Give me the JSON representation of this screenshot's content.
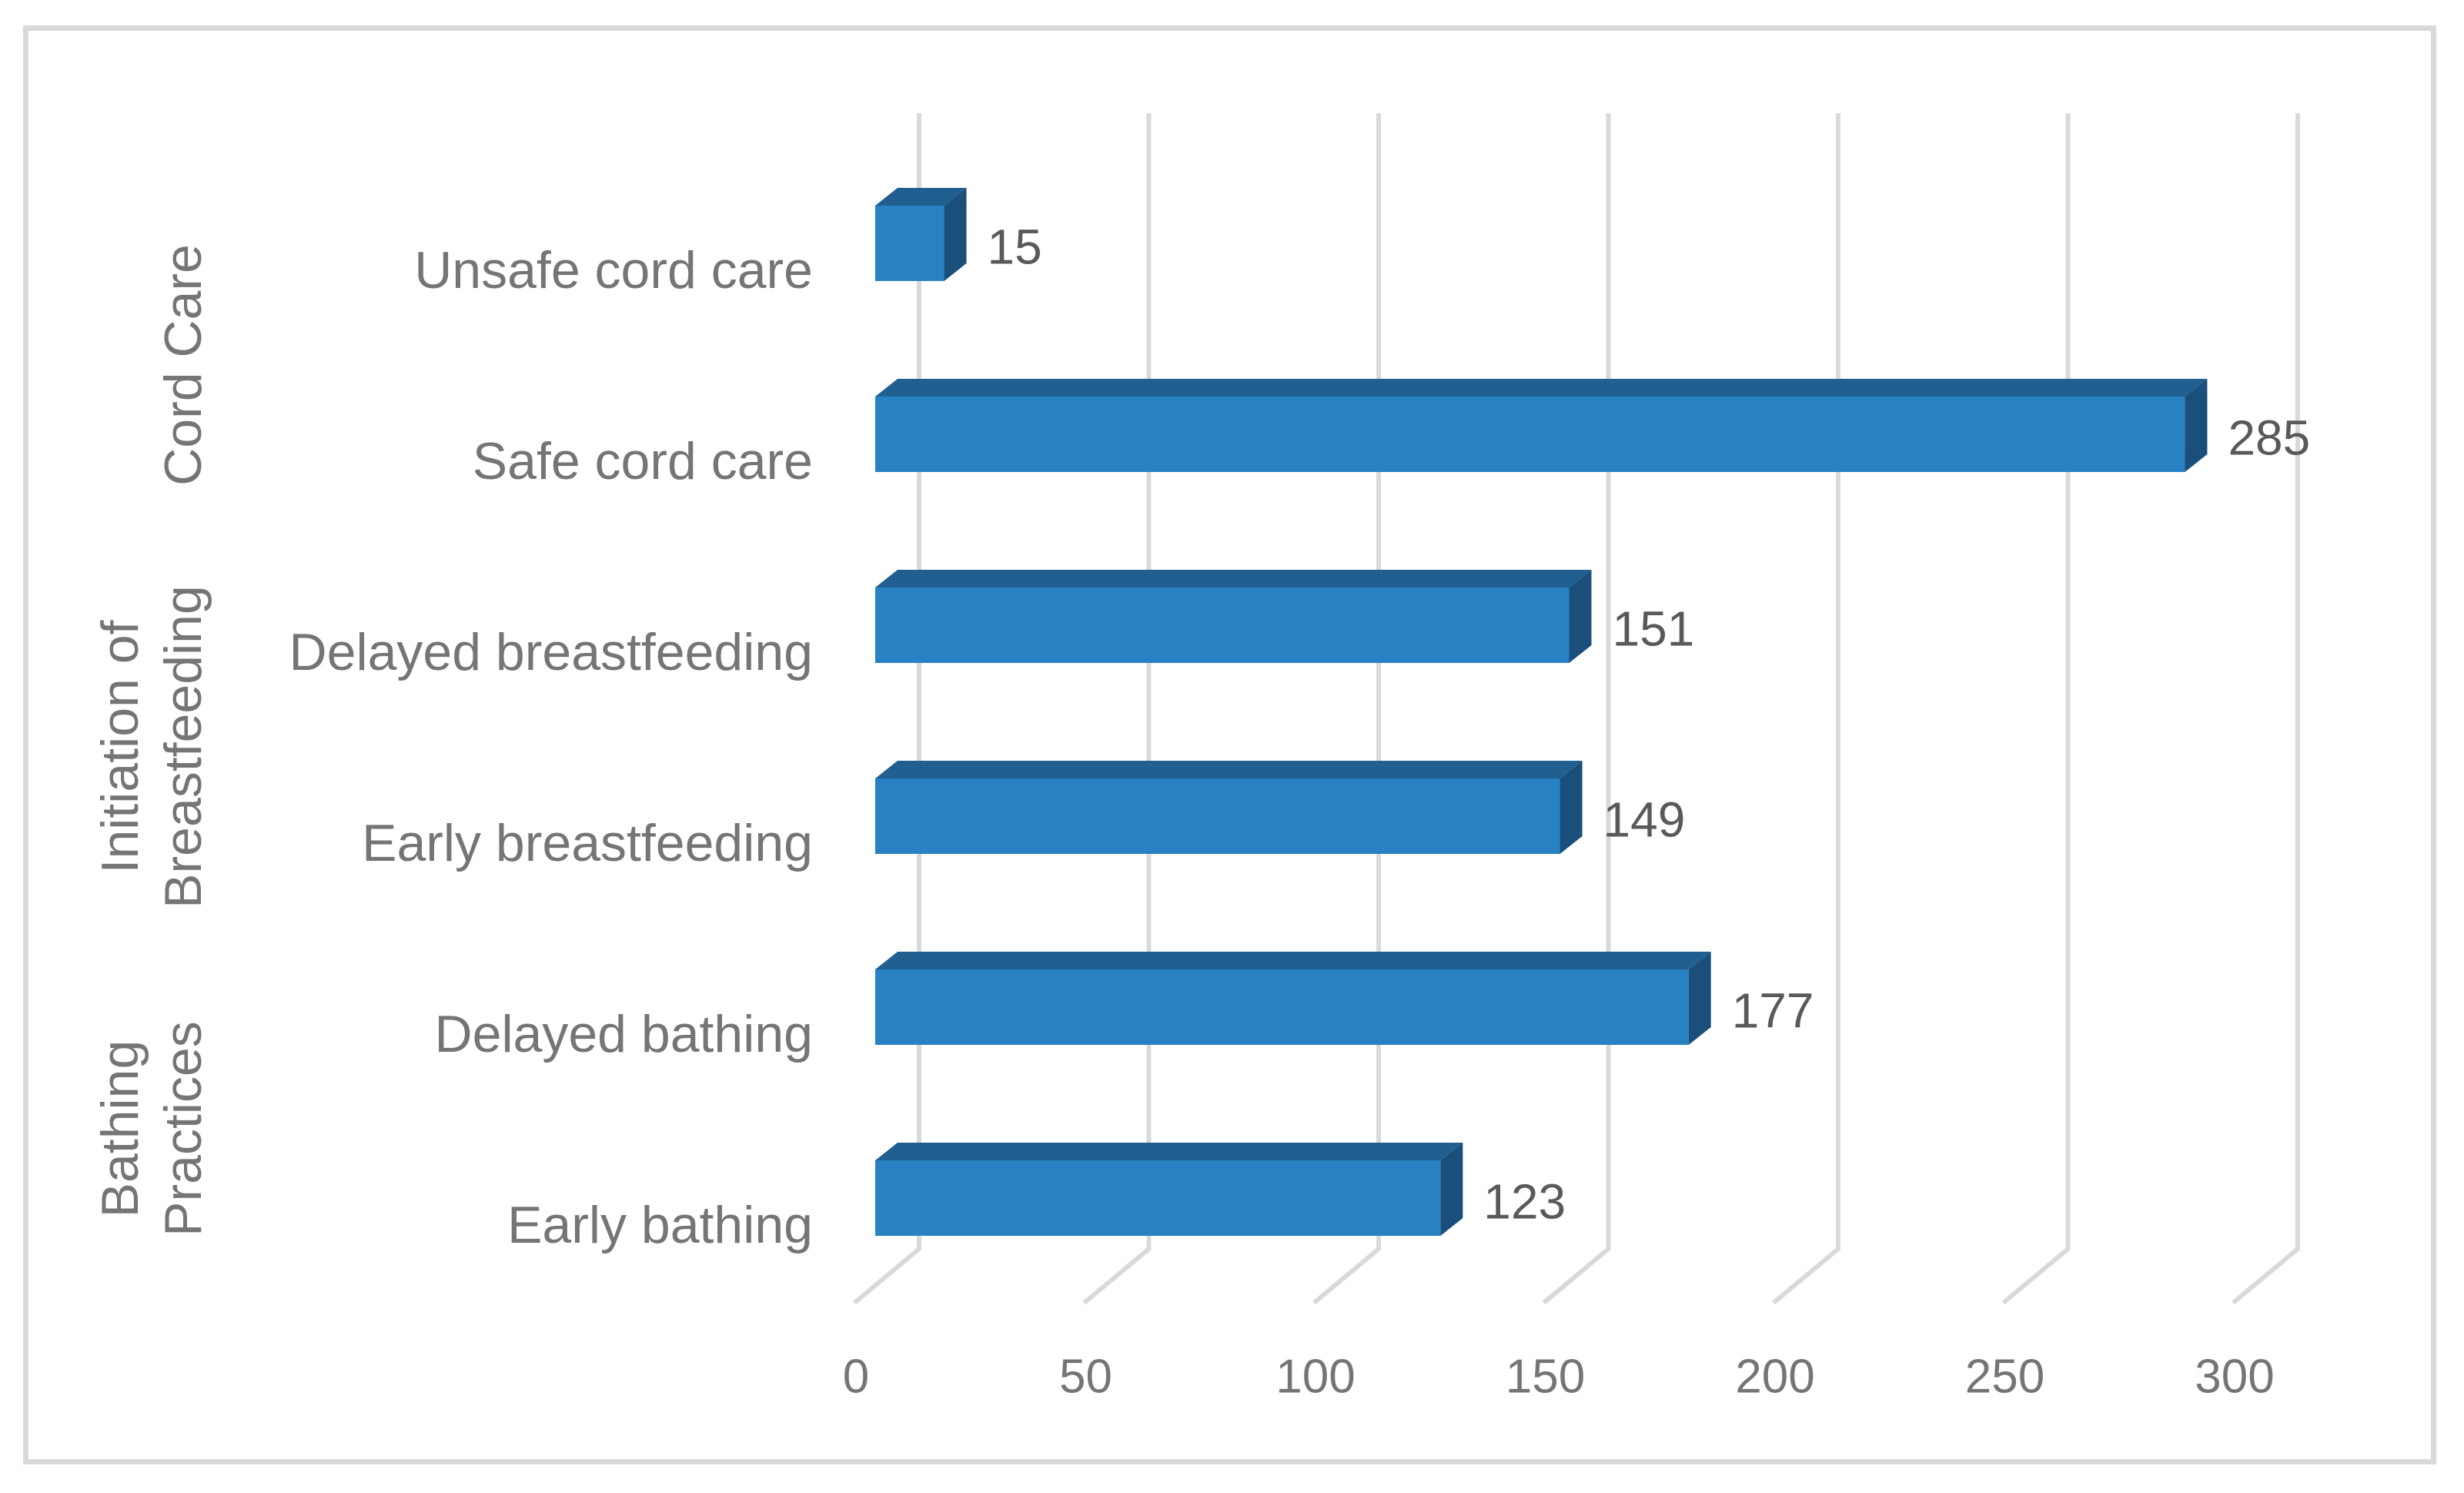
{
  "chart_data": {
    "type": "bar",
    "orientation": "horizontal",
    "style": "3d",
    "title": "",
    "xlabel": "",
    "ylabel": "",
    "x_ticks": [
      0,
      50,
      100,
      150,
      200,
      250,
      300
    ],
    "xlim": [
      0,
      300
    ],
    "grid": true,
    "legend": false,
    "groups": [
      {
        "label_lines": [
          "Cord Care"
        ],
        "categories": [
          "Unsafe cord care",
          "Safe cord care"
        ]
      },
      {
        "label_lines": [
          "Initiation of",
          "Breastfeeding"
        ],
        "categories": [
          "Delayed breastfeeding",
          "Early breastfeeding"
        ]
      },
      {
        "label_lines": [
          "Bathing",
          "Practices"
        ],
        "categories": [
          "Delayed bathing",
          "Early bathing"
        ]
      }
    ],
    "categories": [
      "Unsafe cord care",
      "Safe cord care",
      "Delayed breastfeeding",
      "Early breastfeeding",
      "Delayed bathing",
      "Early bathing"
    ],
    "values": [
      15,
      285,
      151,
      149,
      177,
      123
    ],
    "colors": {
      "bar_front": "#2781C2",
      "bar_top": "#205F90",
      "bar_side": "#1A4F7C",
      "gridline": "#D9D9D9",
      "frame_border": "#D9D9D9",
      "data_label": "#595959",
      "axis_text": "#757575",
      "background": "#FFFFFF"
    }
  }
}
